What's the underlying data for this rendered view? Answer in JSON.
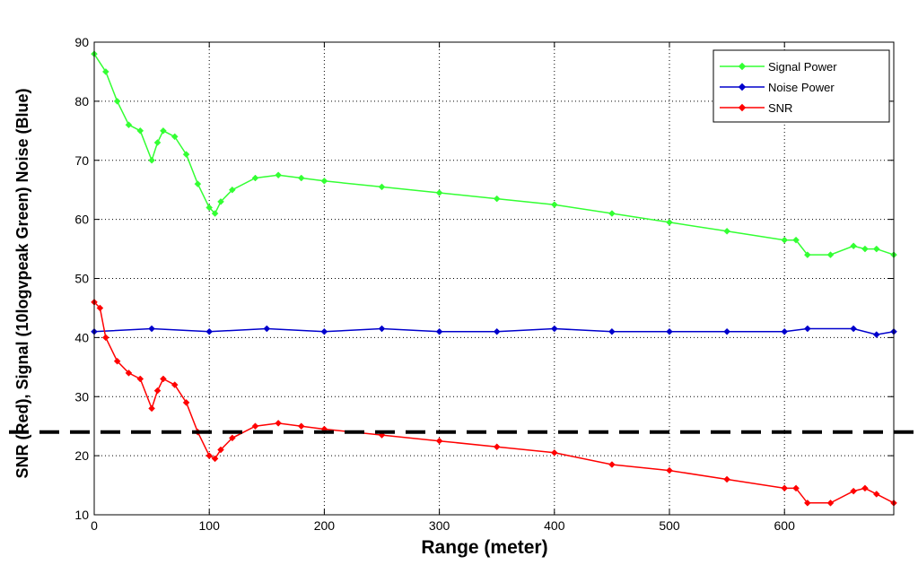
{
  "chart_data": {
    "type": "line",
    "xlabel": "Range (meter)",
    "ylabel": "SNR (Red), Signal  (10logvpeak Green) Noise (Blue)",
    "xlim": [
      0,
      695
    ],
    "ylim": [
      10,
      90
    ],
    "x_ticks": [
      "0",
      "100",
      "200",
      "300",
      "400",
      "500",
      "600"
    ],
    "y_ticks": [
      "10",
      "20",
      "30",
      "40",
      "50",
      "60",
      "70",
      "80",
      "90"
    ],
    "grid": true,
    "legend_position": "top-right",
    "threshold_line": {
      "y": 24,
      "style": "dashed",
      "color": "#000000"
    },
    "series": [
      {
        "name": "Signal Power",
        "color": "#33ff33",
        "marker": "diamond",
        "x": [
          0,
          10,
          20,
          30,
          40,
          50,
          55,
          60,
          70,
          80,
          90,
          100,
          105,
          110,
          120,
          140,
          160,
          180,
          200,
          250,
          300,
          350,
          400,
          450,
          500,
          550,
          600,
          610,
          620,
          640,
          660,
          670,
          680,
          695
        ],
        "values": [
          88,
          85,
          80,
          76,
          75,
          70,
          73,
          75,
          74,
          71,
          66,
          62,
          61,
          63,
          65,
          67,
          67.5,
          67,
          66.5,
          65.5,
          64.5,
          63.5,
          62.5,
          61,
          59.5,
          58,
          56.5,
          56.5,
          54,
          54,
          55.5,
          55,
          55,
          54
        ]
      },
      {
        "name": "Noise Power",
        "color": "#0000cc",
        "marker": "diamond",
        "x": [
          0,
          50,
          100,
          150,
          200,
          250,
          300,
          350,
          400,
          450,
          500,
          550,
          600,
          620,
          660,
          680,
          695
        ],
        "values": [
          41,
          41.5,
          41,
          41.5,
          41,
          41.5,
          41,
          41,
          41.5,
          41,
          41,
          41,
          41,
          41.5,
          41.5,
          40.5,
          41
        ]
      },
      {
        "name": "SNR",
        "color": "#ff0000",
        "marker": "diamond",
        "x": [
          0,
          5,
          10,
          20,
          30,
          40,
          50,
          55,
          60,
          70,
          80,
          90,
          100,
          105,
          110,
          120,
          140,
          160,
          180,
          200,
          250,
          300,
          350,
          400,
          450,
          500,
          550,
          600,
          610,
          620,
          640,
          660,
          670,
          680,
          695
        ],
        "values": [
          46,
          45,
          40,
          36,
          34,
          33,
          28,
          31,
          33,
          32,
          29,
          24,
          20,
          19.5,
          21,
          23,
          25,
          25.5,
          25,
          24.5,
          23.5,
          22.5,
          21.5,
          20.5,
          18.5,
          17.5,
          16,
          14.5,
          14.5,
          12,
          12,
          14,
          14.5,
          13.5,
          12
        ]
      }
    ]
  }
}
